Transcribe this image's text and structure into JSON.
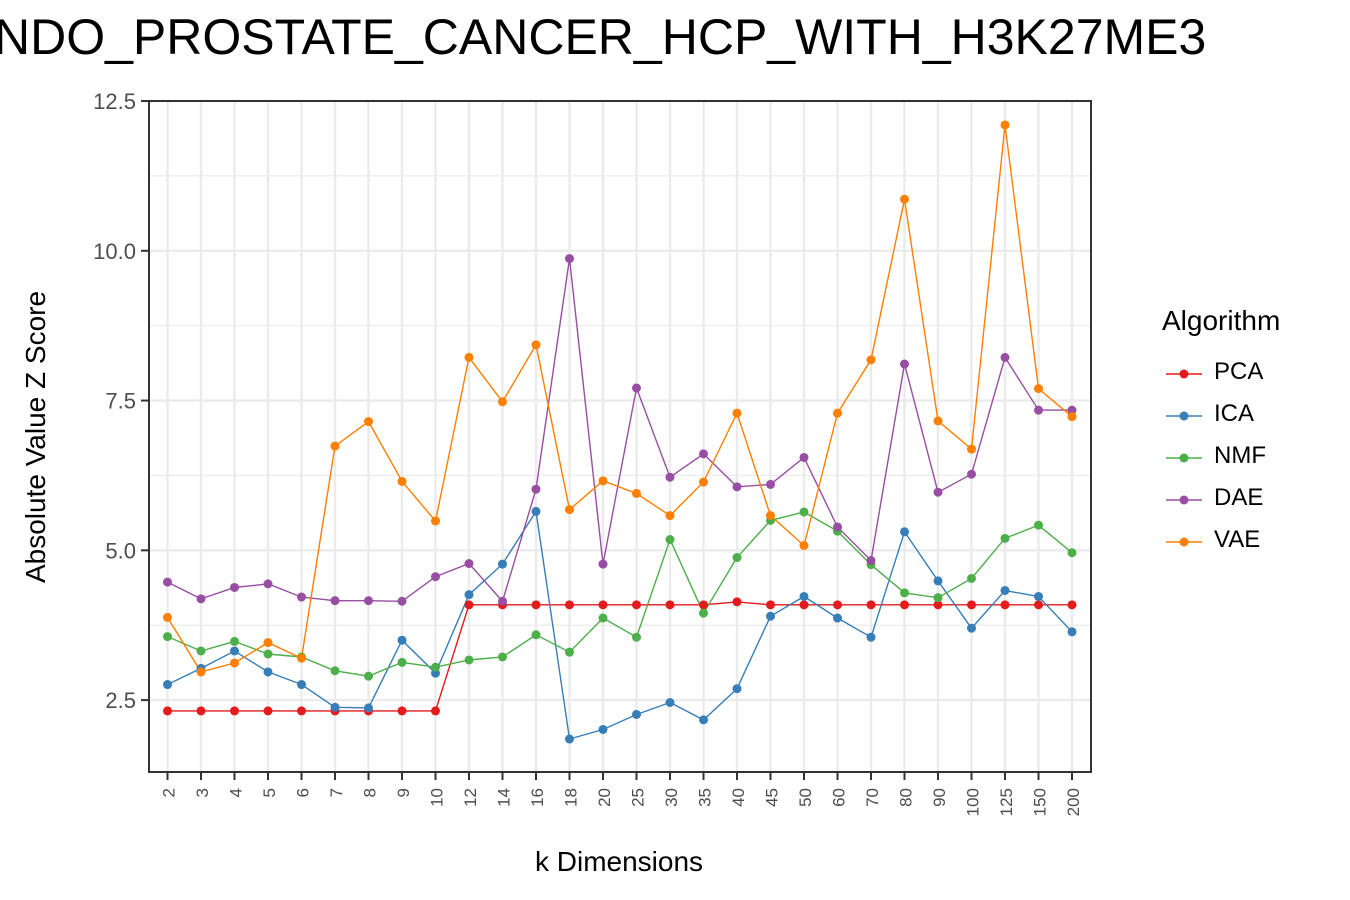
{
  "title": "NDO_PROSTATE_CANCER_HCP_WITH_H3K27ME3",
  "chart_data": {
    "type": "line",
    "title": "NDO_PROSTATE_CANCER_HCP_WITH_H3K27ME3",
    "xlabel": "k Dimensions",
    "ylabel": "Absolute Value Z Score",
    "categories": [
      "2",
      "3",
      "4",
      "5",
      "6",
      "7",
      "8",
      "9",
      "10",
      "12",
      "14",
      "16",
      "18",
      "20",
      "25",
      "30",
      "35",
      "40",
      "45",
      "50",
      "60",
      "70",
      "80",
      "90",
      "100",
      "125",
      "150",
      "200"
    ],
    "ylim": [
      1.3,
      12.5
    ],
    "yticks": [
      "2.5",
      "5.0",
      "7.5",
      "10.0",
      "12.5"
    ],
    "grid": true,
    "legend": {
      "title": "Algorithm",
      "placement": "right"
    },
    "series": [
      {
        "name": "PCA",
        "color": "#E41A1C",
        "values": [
          2.32,
          2.32,
          2.32,
          2.32,
          2.32,
          2.32,
          2.32,
          2.32,
          2.32,
          4.09,
          4.09,
          4.09,
          4.09,
          4.09,
          4.09,
          4.09,
          4.09,
          4.14,
          4.09,
          4.09,
          4.09,
          4.09,
          4.09,
          4.09,
          4.09,
          4.09,
          4.09,
          4.09
        ]
      },
      {
        "name": "ICA",
        "color": "#377EB8",
        "values": [
          2.76,
          3.03,
          3.32,
          2.97,
          2.76,
          2.38,
          2.37,
          3.5,
          2.95,
          4.26,
          4.77,
          5.65,
          1.85,
          2.01,
          2.26,
          2.46,
          2.17,
          2.69,
          3.9,
          4.23,
          3.87,
          3.55,
          5.31,
          4.49,
          3.7,
          4.33,
          4.23,
          3.64
        ]
      },
      {
        "name": "NMF",
        "color": "#4DAF4A",
        "values": [
          3.56,
          3.32,
          3.48,
          3.27,
          3.22,
          2.99,
          2.9,
          3.13,
          3.05,
          3.17,
          3.22,
          3.59,
          3.3,
          3.87,
          3.55,
          5.18,
          3.95,
          4.88,
          5.5,
          5.64,
          5.32,
          4.76,
          4.29,
          4.21,
          4.53,
          5.2,
          5.42,
          4.96
        ]
      },
      {
        "name": "DAE",
        "color": "#984EA3",
        "values": [
          4.47,
          4.19,
          4.38,
          4.44,
          4.22,
          4.16,
          4.16,
          4.15,
          4.56,
          4.78,
          4.15,
          6.02,
          9.87,
          4.77,
          7.71,
          6.22,
          6.61,
          6.06,
          6.1,
          6.55,
          5.39,
          4.83,
          8.11,
          5.97,
          6.27,
          8.22,
          7.34,
          7.34
        ]
      },
      {
        "name": "VAE",
        "color": "#FF7F00",
        "values": [
          3.88,
          2.97,
          3.12,
          3.46,
          3.2,
          6.74,
          7.15,
          6.15,
          5.49,
          8.22,
          7.48,
          8.43,
          5.68,
          6.16,
          5.95,
          5.58,
          6.14,
          7.29,
          5.58,
          5.08,
          7.29,
          8.18,
          10.86,
          7.16,
          6.69,
          12.1,
          7.7,
          7.23
        ]
      }
    ]
  }
}
